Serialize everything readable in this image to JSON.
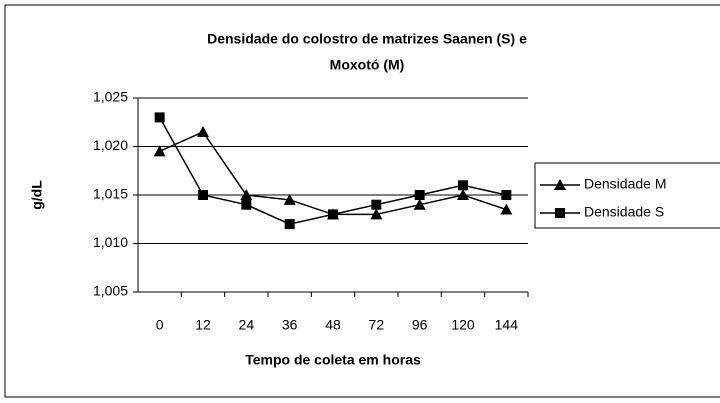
{
  "chart_data": {
    "type": "line",
    "title": [
      "Densidade do colostro de matrizes Saanen (S) e",
      "Moxotó (M)"
    ],
    "x_label": "Tempo de coleta em horas",
    "y_label": "g/dL",
    "categories": [
      "0",
      "12",
      "24",
      "36",
      "48",
      "72",
      "96",
      "120",
      "144"
    ],
    "series": [
      {
        "name": "Densidade M",
        "color": "#000000",
        "marker": "triangle",
        "values": [
          1.0195,
          1.0215,
          1.015,
          1.0145,
          1.013,
          1.013,
          1.014,
          1.015,
          1.0135
        ]
      },
      {
        "name": "Densidade S",
        "color": "#000000",
        "marker": "square",
        "values": [
          1.023,
          1.015,
          1.014,
          1.012,
          1.013,
          1.014,
          1.015,
          1.016,
          1.015
        ]
      }
    ],
    "ylim": [
      1.005,
      1.025
    ],
    "yticks": [
      {
        "value": 1.005,
        "label": "1,005"
      },
      {
        "value": 1.01,
        "label": "1,010"
      },
      {
        "value": 1.015,
        "label": "1,015"
      },
      {
        "value": 1.02,
        "label": "1,020"
      },
      {
        "value": 1.025,
        "label": "1,025"
      }
    ],
    "grid": true,
    "legend": "right"
  }
}
